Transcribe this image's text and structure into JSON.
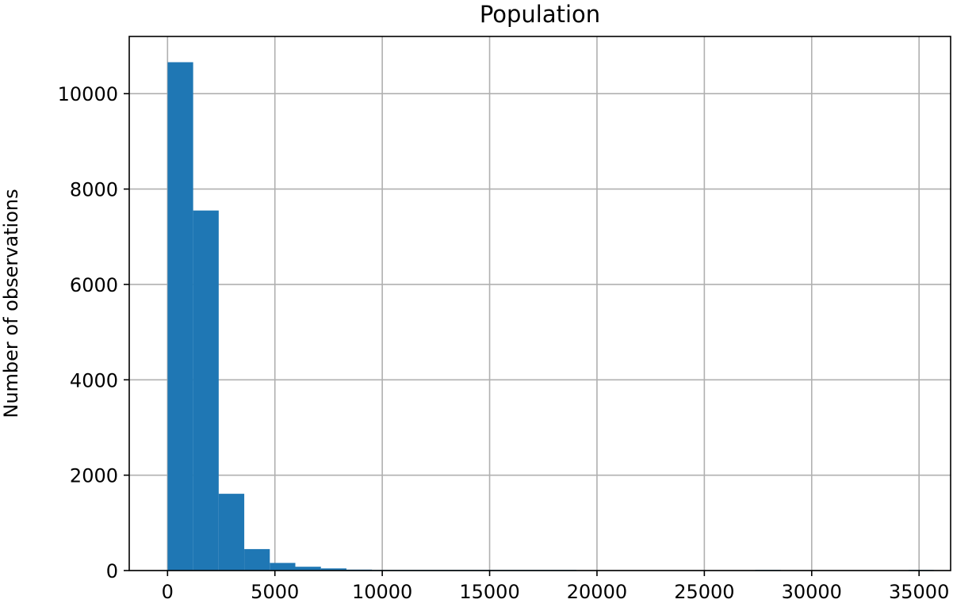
{
  "chart_data": {
    "type": "bar",
    "title": "Population",
    "xlabel": "",
    "ylabel": "Number of observations",
    "xlim": [
      -1784,
      36470
    ],
    "ylim": [
      0,
      11200
    ],
    "grid": true,
    "bar_color": "#1f77b4",
    "x_ticks": [
      0,
      5000,
      10000,
      15000,
      20000,
      25000,
      30000,
      35000
    ],
    "x_tick_labels": [
      "0",
      "5000",
      "10000",
      "15000",
      "20000",
      "25000",
      "30000",
      "35000"
    ],
    "y_ticks": [
      0,
      2000,
      4000,
      6000,
      8000,
      10000
    ],
    "y_tick_labels": [
      "0",
      "2000",
      "4000",
      "6000",
      "8000",
      "10000"
    ],
    "bins": [
      {
        "start": 3,
        "end": 1193,
        "count": 10660
      },
      {
        "start": 1193,
        "end": 2383,
        "count": 7550
      },
      {
        "start": 2383,
        "end": 3573,
        "count": 1610
      },
      {
        "start": 3573,
        "end": 4762,
        "count": 450
      },
      {
        "start": 4762,
        "end": 5952,
        "count": 160
      },
      {
        "start": 5952,
        "end": 7142,
        "count": 80
      },
      {
        "start": 7142,
        "end": 8332,
        "count": 45
      },
      {
        "start": 8332,
        "end": 9522,
        "count": 20
      },
      {
        "start": 9522,
        "end": 10712,
        "count": 10
      },
      {
        "start": 10712,
        "end": 11902,
        "count": 6
      },
      {
        "start": 11902,
        "end": 13092,
        "count": 5
      },
      {
        "start": 13092,
        "end": 14282,
        "count": 3
      },
      {
        "start": 14282,
        "end": 15471,
        "count": 2
      },
      {
        "start": 15471,
        "end": 16661,
        "count": 2
      },
      {
        "start": 16661,
        "end": 17851,
        "count": 1
      },
      {
        "start": 17851,
        "end": 19041,
        "count": 1
      },
      {
        "start": 19041,
        "end": 20231,
        "count": 0
      },
      {
        "start": 20231,
        "end": 21421,
        "count": 0
      },
      {
        "start": 21421,
        "end": 22611,
        "count": 0
      },
      {
        "start": 22611,
        "end": 23801,
        "count": 0
      },
      {
        "start": 23801,
        "end": 24991,
        "count": 0
      },
      {
        "start": 24991,
        "end": 26181,
        "count": 0
      },
      {
        "start": 26181,
        "end": 27371,
        "count": 0
      },
      {
        "start": 27371,
        "end": 28561,
        "count": 1
      },
      {
        "start": 28561,
        "end": 29751,
        "count": 0
      },
      {
        "start": 29751,
        "end": 30941,
        "count": 0
      },
      {
        "start": 30941,
        "end": 32131,
        "count": 0
      },
      {
        "start": 32131,
        "end": 33321,
        "count": 0
      },
      {
        "start": 33321,
        "end": 34511,
        "count": 0
      },
      {
        "start": 34511,
        "end": 35682,
        "count": 1
      }
    ]
  }
}
